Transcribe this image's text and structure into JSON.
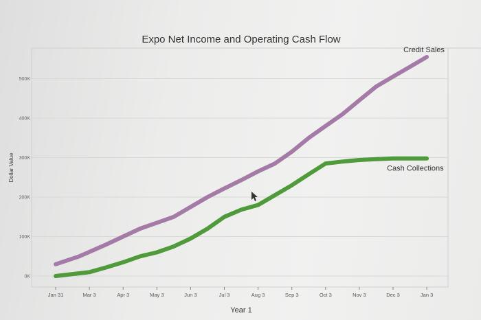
{
  "chart_data": {
    "type": "line",
    "title": "Expo Net Income and Operating Cash Flow",
    "xlabel": "Year 1",
    "ylabel": "Dollar Value",
    "categories": [
      "Jan 31",
      "Mar 3",
      "Apr 3",
      "May 3",
      "Jun 3",
      "Jul 3",
      "Aug 3",
      "Sep 3",
      "Oct 3",
      "Nov 3",
      "Dec 3",
      "Jan 3"
    ],
    "y_ticks": [
      "0K",
      "100K",
      "200K",
      "300K",
      "400K",
      "500K"
    ],
    "ylim": [
      0,
      580000
    ],
    "grid": true,
    "legend": "labels at line ends",
    "series": [
      {
        "name": "Credit Sales",
        "color": "#a47ba6",
        "x": [
          0,
          0.7,
          1.5,
          2,
          2.5,
          3,
          3.5,
          4,
          4.5,
          5,
          5.5,
          6,
          6.5,
          7,
          7.5,
          8,
          8.5,
          9,
          9.5,
          10,
          10.5,
          11
        ],
        "values": [
          30000,
          50000,
          80000,
          100000,
          120000,
          135000,
          150000,
          175000,
          200000,
          222000,
          243000,
          265000,
          285000,
          315000,
          350000,
          380000,
          410000,
          445000,
          480000,
          505000,
          530000,
          555000
        ]
      },
      {
        "name": "Cash Collections",
        "color": "#4f9a3a",
        "x": [
          0,
          1,
          1.5,
          2,
          2.5,
          3,
          3.5,
          4,
          4.5,
          5,
          5.5,
          6,
          6.5,
          7,
          7.5,
          8,
          8.5,
          9,
          9.5,
          10,
          10.5,
          11
        ],
        "values": [
          0,
          10000,
          22000,
          35000,
          50000,
          60000,
          75000,
          95000,
          120000,
          150000,
          168000,
          180000,
          205000,
          230000,
          258000,
          285000,
          290000,
          294000,
          296000,
          298000,
          298000,
          298000
        ]
      }
    ]
  }
}
